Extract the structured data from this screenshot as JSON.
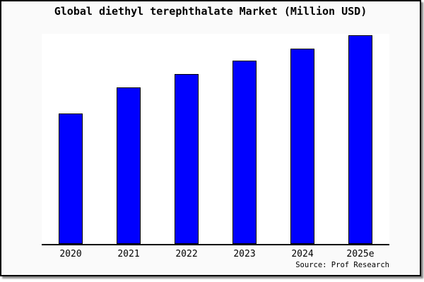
{
  "chart_data": {
    "type": "bar",
    "title": "Global diethyl terephthalate Market (Million USD)",
    "categories": [
      "2020",
      "2021",
      "2022",
      "2023",
      "2024",
      "2025e"
    ],
    "values": [
      188,
      225,
      244,
      263,
      281,
      300
    ],
    "value_note": "relative heights; no numeric y-axis shown in chart",
    "ylim": [
      0,
      302
    ],
    "xlabel": "",
    "ylabel": "",
    "grid": false,
    "y_axis_visible": false,
    "legend": "none",
    "bar_color": "#0000ff",
    "bar_border_color": "#000000",
    "plot_background": "#ffffff",
    "frame_background": "#fafafa",
    "frame_border_color": "#000000",
    "axis_color": "#000000"
  },
  "source": {
    "label": "Source: Prof Research"
  }
}
